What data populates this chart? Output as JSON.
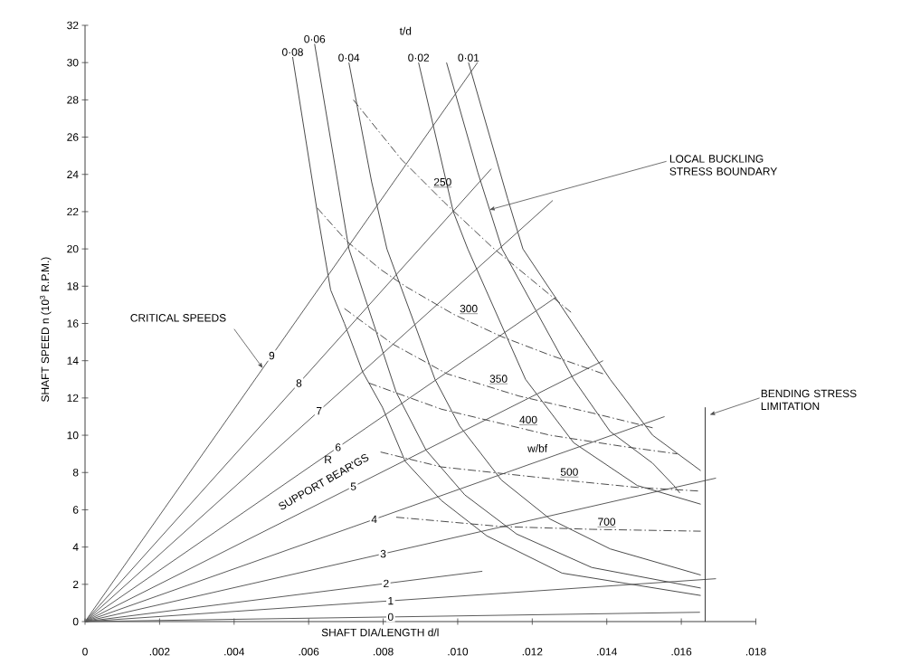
{
  "chart_data": {
    "type": "line",
    "xlabel": "SHAFT DIA/LENGTH d/l",
    "ylabel": "SHAFT SPEED n (10$^{3}$ R.P.M.)",
    "xlim": [
      0,
      0.018
    ],
    "ylim": [
      0,
      32
    ],
    "xticks": [
      0,
      {
        "value": 0.002,
        "label": ".002"
      },
      {
        "value": 0.004,
        "label": ".004"
      },
      {
        "value": 0.006,
        "label": ".006"
      },
      {
        "value": 0.008,
        "label": ".008"
      },
      {
        "value": 0.01,
        "label": ".010"
      },
      {
        "value": 0.012,
        "label": ".012"
      },
      {
        "value": 0.014,
        "label": ".014"
      },
      {
        "value": 0.016,
        "label": ".016"
      },
      {
        "value": 0.018,
        "label": ".018"
      }
    ],
    "yticks": [
      0,
      2,
      4,
      6,
      8,
      10,
      12,
      14,
      16,
      18,
      20,
      22,
      24,
      26,
      28,
      30,
      32
    ],
    "line_style": "solid",
    "series": [
      {
        "name": "0·08",
        "color": "#4a4a4a",
        "x": [
          0.00557,
          0.00623,
          0.0064,
          0.00659,
          0.00696,
          0.00745,
          0.00798,
          0.00859,
          0.00956,
          0.01078,
          0.0128,
          0.01652
        ],
        "values": [
          30.3,
          22.0,
          20.0,
          17.8,
          16.0,
          13.4,
          11.5,
          8.6,
          6.5,
          4.6,
          2.6,
          1.4
        ]
      },
      {
        "name": "0·06",
        "color": "#4a4a4a",
        "x": [
          0.00616,
          0.00708,
          0.00835,
          0.00915,
          0.01019,
          0.01158,
          0.0136,
          0.01652
        ],
        "values": [
          31.0,
          20.0,
          12.3,
          9.2,
          6.8,
          4.7,
          2.9,
          1.8
        ]
      },
      {
        "name": "0·04",
        "color": "#4a4a4a",
        "x": [
          0.00708,
          0.00769,
          0.0081,
          0.00939,
          0.01005,
          0.01117,
          0.01248,
          0.01409,
          0.01652
        ],
        "values": [
          30.0,
          23.6,
          20.0,
          13.0,
          10.5,
          7.6,
          5.5,
          3.9,
          2.5
        ]
      },
      {
        "name": "0·02",
        "color": "#4a4a4a",
        "x": [
          0.00895,
          0.00988,
          0.01027,
          0.01182,
          0.01311,
          0.01482,
          0.01652
        ],
        "values": [
          30.0,
          22.0,
          20.0,
          13.0,
          9.6,
          7.3,
          6.3
        ]
      },
      {
        "name": "0·01",
        "color": "#4a4a4a",
        "x": [
          0.01029,
          0.01134,
          0.01175,
          0.01409,
          0.01523,
          0.01652
        ],
        "values": [
          30.0,
          22.7,
          20.0,
          13.0,
          10.0,
          8.1
        ]
      },
      {
        "color": "#4a4a4a",
        "x": [
          0.0097,
          0.01054,
          0.01119,
          0.01311,
          0.01409,
          0.01523,
          0.0158,
          0.01596
        ],
        "values": [
          30.0,
          24.1,
          20.0,
          13.0,
          10.2,
          8.5,
          7.3,
          6.9
        ]
      },
      {
        "name": "9",
        "color": "#5a5a5a",
        "x": [
          0,
          0.01053
        ],
        "values": [
          0,
          30.0
        ]
      },
      {
        "name": "8",
        "color": "#5a5a5a",
        "x": [
          0,
          0.0109
        ],
        "values": [
          0,
          24.3
        ]
      },
      {
        "name": "7",
        "color": "#5a5a5a",
        "x": [
          0,
          0.01255
        ],
        "values": [
          0,
          22.6
        ]
      },
      {
        "name": "6",
        "color": "#5a5a5a",
        "x": [
          0,
          0.01263
        ],
        "values": [
          0,
          17.4
        ]
      },
      {
        "name": "5",
        "color": "#5a5a5a",
        "x": [
          0,
          0.0139
        ],
        "values": [
          0,
          14.0
        ]
      },
      {
        "name": "4",
        "color": "#5a5a5a",
        "x": [
          0,
          0.01555
        ],
        "values": [
          0,
          11.0
        ]
      },
      {
        "name": "3",
        "color": "#5a5a5a",
        "x": [
          0,
          0.01693
        ],
        "values": [
          0,
          7.7
        ]
      },
      {
        "name": "2",
        "color": "#5a5a5a",
        "x": [
          0,
          0.01066
        ],
        "values": [
          0,
          2.7
        ]
      },
      {
        "name": "1",
        "color": "#5a5a5a",
        "x": [
          0,
          0.01693
        ],
        "values": [
          0,
          2.3
        ]
      },
      {
        "name": "0",
        "color": "#5a5a5a",
        "x": [
          0,
          0.0165
        ],
        "values": [
          0,
          0.5
        ]
      },
      {
        "name": "250",
        "color": "#4a4a4a",
        "line_style": "dashed",
        "x": [
          0.0072,
          0.00849,
          0.00964,
          0.01092,
          0.01304
        ],
        "values": [
          28.0,
          24.8,
          22.5,
          20.1,
          16.6
        ]
      },
      {
        "name": "300",
        "color": "#4a4a4a",
        "line_style": "dashed",
        "x": [
          0.00623,
          0.00703,
          0.00793,
          0.00859,
          0.00988,
          0.01117,
          0.01248,
          0.0139
        ],
        "values": [
          22.2,
          20.4,
          18.9,
          18.0,
          16.5,
          15.3,
          14.3,
          13.3
        ]
      },
      {
        "name": "350",
        "color": "#4a4a4a",
        "line_style": "dashed",
        "x": [
          0.00696,
          0.00825,
          0.00971,
          0.01165,
          0.0136,
          0.01523
        ],
        "values": [
          16.8,
          14.9,
          13.3,
          12.1,
          11.2,
          10.4
        ]
      },
      {
        "name": "400",
        "color": "#4a4a4a",
        "line_style": "dashed",
        "x": [
          0.00762,
          0.00956,
          0.01248,
          0.01443,
          0.01589
        ],
        "values": [
          12.8,
          11.4,
          10.0,
          9.4,
          9.0
        ]
      },
      {
        "name": "500",
        "color": "#4a4a4a",
        "line_style": "dashed",
        "x": [
          0.00793,
          0.00956,
          0.0128,
          0.01482,
          0.01652
        ],
        "values": [
          9.1,
          8.3,
          7.6,
          7.2,
          7.0
        ]
      },
      {
        "name": "700",
        "color": "#4a4a4a",
        "line_style": "dashed",
        "x": [
          0.00835,
          0.01117,
          0.0136,
          0.01652
        ],
        "values": [
          5.6,
          5.1,
          4.95,
          4.85
        ]
      },
      {
        "color": "#3a3a3a",
        "x": [
          0.01664,
          0.01664
        ],
        "values": [
          0,
          11.5
        ]
      }
    ],
    "annotations": [
      "t/d",
      {
        "text": "CRITICAL SPEEDS",
        "x": 0.00477,
        "y": 13.6
      },
      {
        "text": "LOCAL BUCKLING STRESS BOUNDARY",
        "x": 0.01085,
        "y": 22.1
      },
      {
        "text": "BENDING STRESS LIMITATION",
        "x": 0.01676,
        "y": 11.1
      },
      "SUPPORT BEAR'GS",
      "R",
      "w/bf"
    ]
  }
}
